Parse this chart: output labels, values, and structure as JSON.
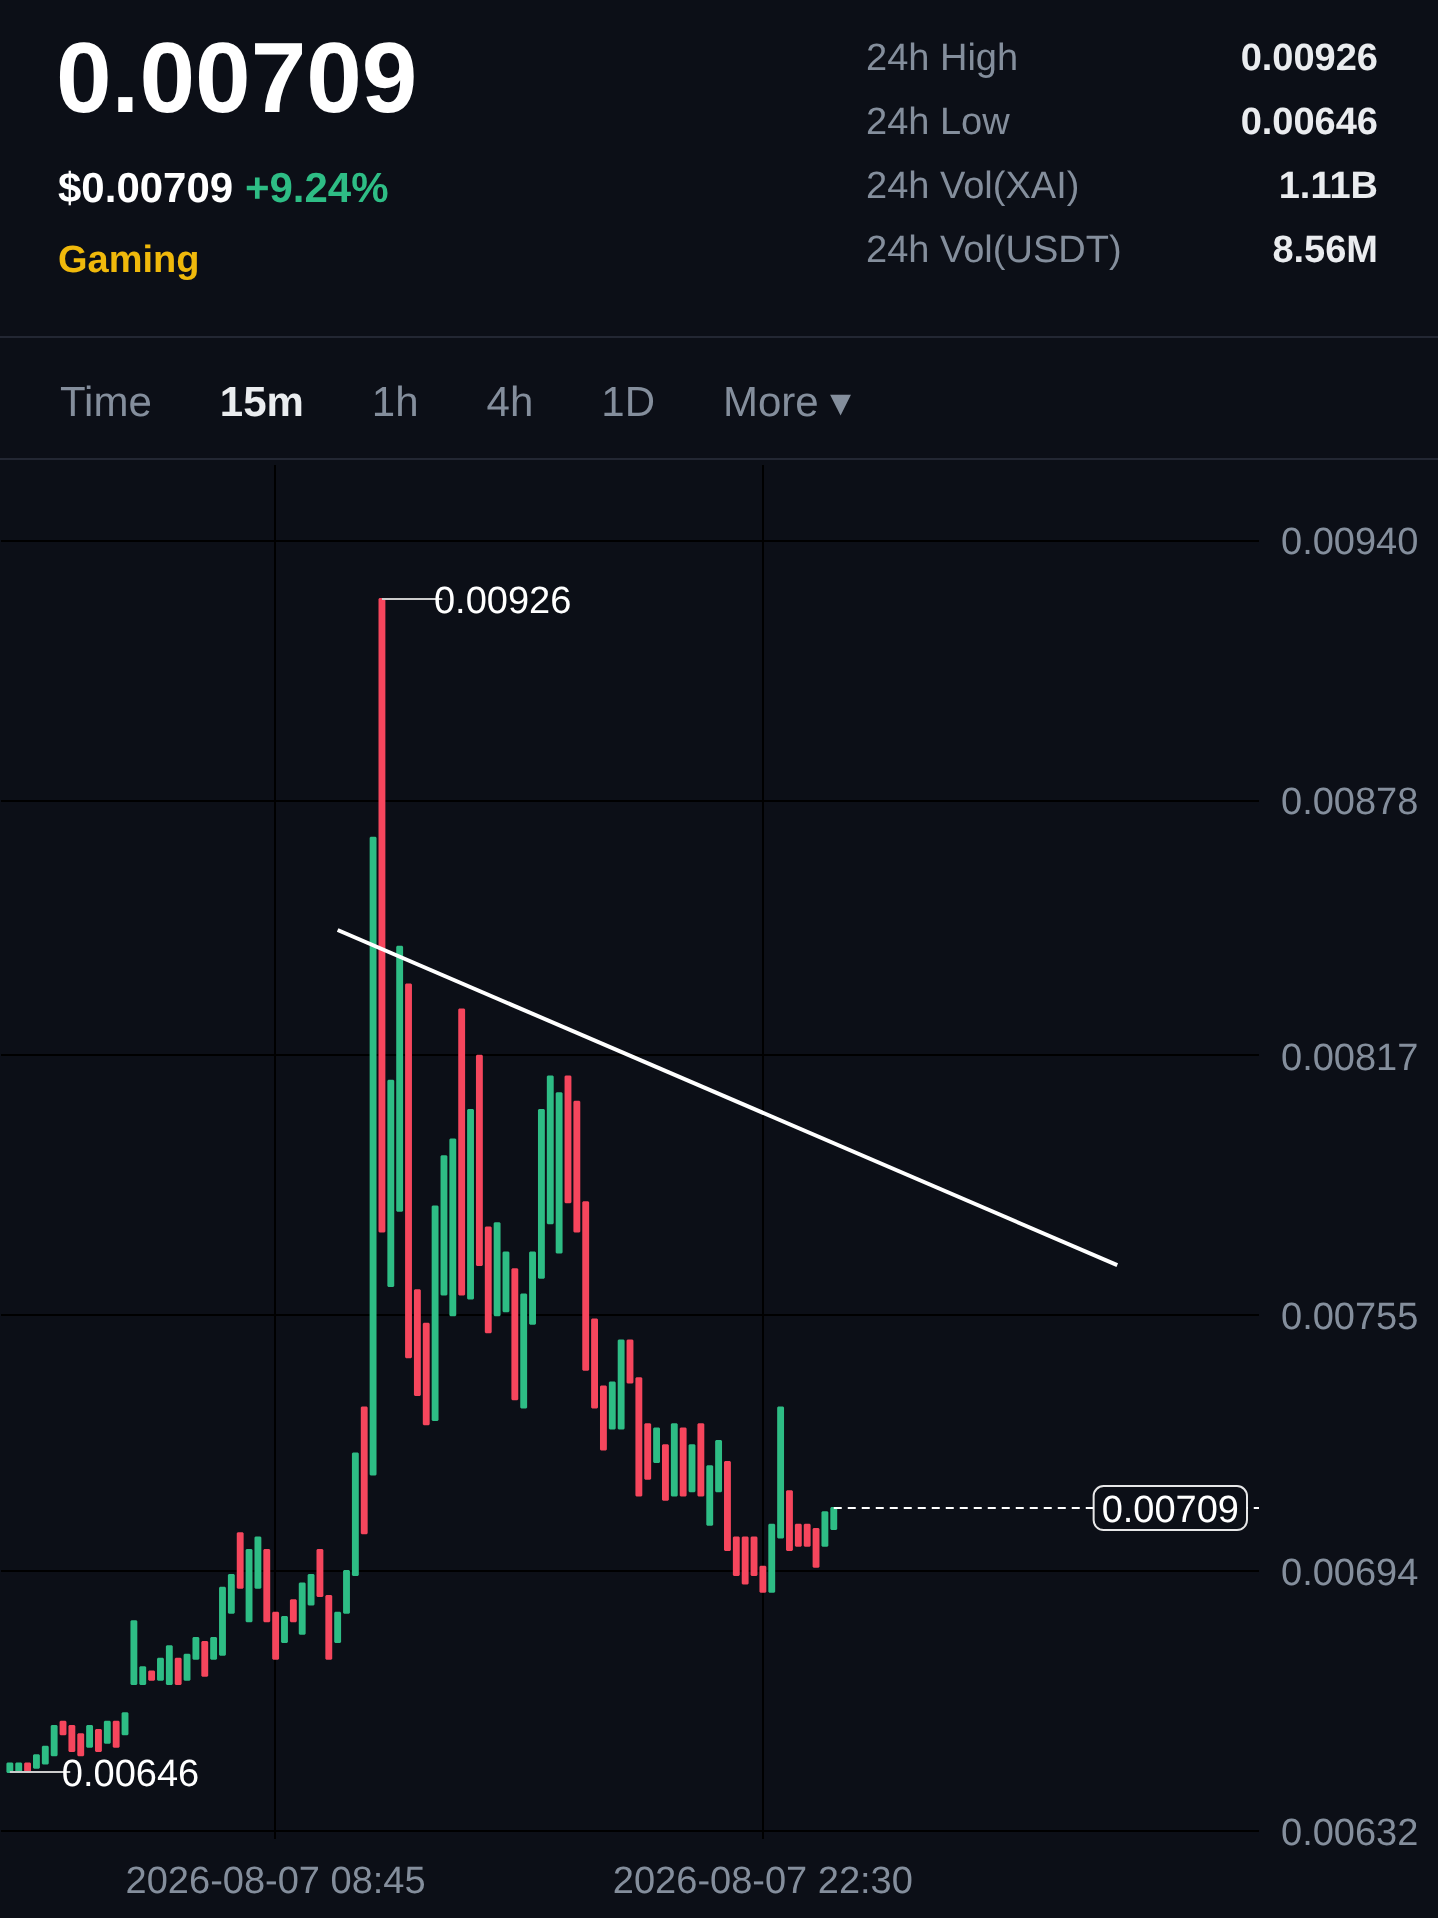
{
  "chart_data": {
    "type": "candlestick",
    "title": "0.00709",
    "subtitle": "$0.00709 +9.24%",
    "annotations": [
      "Gaming",
      "24h High",
      "0.00926",
      "24h Low",
      "0.00646",
      "24h Vol(XAI)",
      "1.11B",
      "24h Vol(USDT)",
      "8.56M",
      "Time",
      "15m",
      "1h",
      "4h",
      "1D",
      "More ▾",
      {
        "text": "0.00926",
        "x": "2026-08-07T11:45",
        "y": 0.00926
      },
      {
        "text": "0.00646",
        "x": "2026-08-07T01:15",
        "y": 0.00646
      }
    ],
    "x": [
      "2026-08-07T01:15",
      "2026-08-07T01:30",
      "2026-08-07T01:45",
      "2026-08-07T02:00",
      "2026-08-07T02:15",
      "2026-08-07T02:30",
      "2026-08-07T02:45",
      "2026-08-07T03:00",
      "2026-08-07T03:15",
      "2026-08-07T03:30",
      "2026-08-07T03:45",
      "2026-08-07T04:00",
      "2026-08-07T04:15",
      "2026-08-07T04:30",
      "2026-08-07T04:45",
      "2026-08-07T05:00",
      "2026-08-07T05:15",
      "2026-08-07T05:30",
      "2026-08-07T05:45",
      "2026-08-07T06:00",
      "2026-08-07T06:15",
      "2026-08-07T06:30",
      "2026-08-07T06:45",
      "2026-08-07T07:00",
      "2026-08-07T07:15",
      "2026-08-07T07:30",
      "2026-08-07T07:45",
      "2026-08-07T08:00",
      "2026-08-07T08:15",
      "2026-08-07T08:30",
      "2026-08-07T08:45",
      "2026-08-07T09:00",
      "2026-08-07T09:15",
      "2026-08-07T09:30",
      "2026-08-07T09:45",
      "2026-08-07T10:00",
      "2026-08-07T10:15",
      "2026-08-07T10:30",
      "2026-08-07T10:45",
      "2026-08-07T11:00",
      "2026-08-07T11:15",
      "2026-08-07T11:30",
      "2026-08-07T11:45",
      "2026-08-07T12:00",
      "2026-08-07T12:15",
      "2026-08-07T12:30",
      "2026-08-07T12:45",
      "2026-08-07T13:00",
      "2026-08-07T13:15",
      "2026-08-07T13:30",
      "2026-08-07T13:45",
      "2026-08-07T14:00",
      "2026-08-07T14:15",
      "2026-08-07T14:30",
      "2026-08-07T14:45",
      "2026-08-07T15:00",
      "2026-08-07T15:15",
      "2026-08-07T15:30",
      "2026-08-07T15:45",
      "2026-08-07T16:00",
      "2026-08-07T16:15",
      "2026-08-07T16:30",
      "2026-08-07T16:45",
      "2026-08-07T17:00",
      "2026-08-07T17:15",
      "2026-08-07T17:30",
      "2026-08-07T17:45",
      "2026-08-07T18:00",
      "2026-08-07T18:15",
      "2026-08-07T18:30",
      "2026-08-07T18:45",
      "2026-08-07T19:00",
      "2026-08-07T19:15",
      "2026-08-07T19:30",
      "2026-08-07T19:45",
      "2026-08-07T20:00",
      "2026-08-07T20:15",
      "2026-08-07T20:30",
      "2026-08-07T20:45",
      "2026-08-07T21:00",
      "2026-08-07T21:15",
      "2026-08-07T21:30",
      "2026-08-07T21:45",
      "2026-08-07T22:00",
      "2026-08-07T22:15",
      "2026-08-07T22:30",
      "2026-08-07T22:45",
      "2026-08-07T23:00",
      "2026-08-07T23:15",
      "2026-08-07T23:30",
      "2026-08-07T23:45",
      "2026-08-08T00:00",
      "2026-08-08T00:15",
      "2026-08-08T00:30"
    ],
    "ohlc": [
      [
        0.00646,
        0.00648,
        0.00646,
        0.00648
      ],
      [
        0.00646,
        0.00648,
        0.00646,
        0.00648
      ],
      [
        0.00648,
        0.00648,
        0.00646,
        0.00646
      ],
      [
        0.00647,
        0.0065,
        0.00647,
        0.0065
      ],
      [
        0.00648,
        0.00652,
        0.00648,
        0.00652
      ],
      [
        0.0065,
        0.00657,
        0.0065,
        0.00657
      ],
      [
        0.00658,
        0.00658,
        0.00655,
        0.00655
      ],
      [
        0.00657,
        0.00657,
        0.00651,
        0.00651
      ],
      [
        0.00655,
        0.00655,
        0.0065,
        0.0065
      ],
      [
        0.00652,
        0.00657,
        0.00652,
        0.00657
      ],
      [
        0.00656,
        0.00656,
        0.00651,
        0.00651
      ],
      [
        0.00653,
        0.00658,
        0.00653,
        0.00658
      ],
      [
        0.00658,
        0.00658,
        0.00652,
        0.00652
      ],
      [
        0.00655,
        0.0066,
        0.00655,
        0.0066
      ],
      [
        0.00667,
        0.00682,
        0.00667,
        0.00682
      ],
      [
        0.00667,
        0.00671,
        0.00667,
        0.00671
      ],
      [
        0.0067,
        0.0067,
        0.00668,
        0.00668
      ],
      [
        0.00668,
        0.00673,
        0.00668,
        0.00673
      ],
      [
        0.00667,
        0.00676,
        0.00667,
        0.00676
      ],
      [
        0.00673,
        0.00673,
        0.00667,
        0.00667
      ],
      [
        0.00668,
        0.00674,
        0.00668,
        0.00674
      ],
      [
        0.00673,
        0.00678,
        0.00673,
        0.00678
      ],
      [
        0.00677,
        0.00677,
        0.00669,
        0.00669
      ],
      [
        0.00673,
        0.00678,
        0.00673,
        0.00678
      ],
      [
        0.00674,
        0.0069,
        0.00674,
        0.0069
      ],
      [
        0.00684,
        0.00693,
        0.00684,
        0.00693
      ],
      [
        0.00703,
        0.00703,
        0.0069,
        0.0069
      ],
      [
        0.00682,
        0.00699,
        0.00682,
        0.00699
      ],
      [
        0.0069,
        0.00702,
        0.0069,
        0.00702
      ],
      [
        0.00699,
        0.00699,
        0.00682,
        0.00682
      ],
      [
        0.00684,
        0.00684,
        0.00673,
        0.00673
      ],
      [
        0.00677,
        0.00683,
        0.00677,
        0.00683
      ],
      [
        0.00687,
        0.00687,
        0.00682,
        0.00682
      ],
      [
        0.00679,
        0.00691,
        0.00679,
        0.00691
      ],
      [
        0.00686,
        0.00693,
        0.00686,
        0.00693
      ],
      [
        0.00699,
        0.00699,
        0.00688,
        0.00688
      ],
      [
        0.00688,
        0.00688,
        0.00673,
        0.00673
      ],
      [
        0.00677,
        0.00684,
        0.00677,
        0.00684
      ],
      [
        0.00684,
        0.00694,
        0.00684,
        0.00694
      ],
      [
        0.00693,
        0.00722,
        0.00693,
        0.00722
      ],
      [
        0.00733,
        0.00733,
        0.00703,
        0.00703
      ],
      [
        0.00717,
        0.00869,
        0.00717,
        0.00869
      ],
      [
        0.00926,
        0.00926,
        0.00775,
        0.00775
      ],
      [
        0.00762,
        0.00811,
        0.00762,
        0.00811
      ],
      [
        0.0078,
        0.00843,
        0.0078,
        0.00843
      ],
      [
        0.00834,
        0.00834,
        0.00745,
        0.00745
      ],
      [
        0.00761,
        0.00761,
        0.00736,
        0.00736
      ],
      [
        0.00753,
        0.00753,
        0.00729,
        0.00729
      ],
      [
        0.0073,
        0.00781,
        0.0073,
        0.00781
      ],
      [
        0.0076,
        0.00793,
        0.0076,
        0.00793
      ],
      [
        0.00755,
        0.00797,
        0.00755,
        0.00797
      ],
      [
        0.00828,
        0.00828,
        0.0076,
        0.0076
      ],
      [
        0.00759,
        0.00804,
        0.00759,
        0.00804
      ],
      [
        0.00817,
        0.00817,
        0.00767,
        0.00767
      ],
      [
        0.00776,
        0.00776,
        0.00751,
        0.00751
      ],
      [
        0.00755,
        0.00777,
        0.00755,
        0.00777
      ],
      [
        0.00756,
        0.0077,
        0.00756,
        0.0077
      ],
      [
        0.00766,
        0.00766,
        0.00735,
        0.00735
      ],
      [
        0.00733,
        0.0076,
        0.00733,
        0.0076
      ],
      [
        0.00753,
        0.0077,
        0.00753,
        0.0077
      ],
      [
        0.00764,
        0.00804,
        0.00764,
        0.00804
      ],
      [
        0.00777,
        0.00812,
        0.00777,
        0.00812
      ],
      [
        0.0077,
        0.00808,
        0.0077,
        0.00808
      ],
      [
        0.00812,
        0.00812,
        0.00782,
        0.00782
      ],
      [
        0.00806,
        0.00806,
        0.00775,
        0.00775
      ],
      [
        0.00782,
        0.00782,
        0.00742,
        0.00742
      ],
      [
        0.00754,
        0.00754,
        0.00733,
        0.00733
      ],
      [
        0.00738,
        0.00738,
        0.00723,
        0.00723
      ],
      [
        0.00728,
        0.00739,
        0.00728,
        0.00739
      ],
      [
        0.00728,
        0.00749,
        0.00728,
        0.00749
      ],
      [
        0.00749,
        0.00749,
        0.00739,
        0.00739
      ],
      [
        0.0074,
        0.0074,
        0.00712,
        0.00712
      ],
      [
        0.00729,
        0.00729,
        0.00716,
        0.00716
      ],
      [
        0.0072,
        0.00728,
        0.0072,
        0.00728
      ],
      [
        0.00724,
        0.00724,
        0.00711,
        0.00711
      ],
      [
        0.00712,
        0.00729,
        0.00712,
        0.00729
      ],
      [
        0.00728,
        0.00728,
        0.00712,
        0.00712
      ],
      [
        0.00713,
        0.00724,
        0.00713,
        0.00724
      ],
      [
        0.00729,
        0.00729,
        0.00712,
        0.00712
      ],
      [
        0.00705,
        0.00719,
        0.00705,
        0.00719
      ],
      [
        0.00713,
        0.00725,
        0.00713,
        0.00725
      ],
      [
        0.0072,
        0.0072,
        0.00699,
        0.00699
      ],
      [
        0.00702,
        0.00702,
        0.00693,
        0.00693
      ],
      [
        0.00702,
        0.00702,
        0.00691,
        0.00691
      ],
      [
        0.00702,
        0.00702,
        0.00693,
        0.00693
      ],
      [
        0.00695,
        0.00695,
        0.00689,
        0.00689
      ],
      [
        0.00689,
        0.00705,
        0.00689,
        0.00705
      ],
      [
        0.00702,
        0.00733,
        0.00702,
        0.00733
      ],
      [
        0.00713,
        0.00713,
        0.00699,
        0.00699
      ],
      [
        0.00705,
        0.00705,
        0.007,
        0.007
      ],
      [
        0.00705,
        0.00705,
        0.007,
        0.007
      ],
      [
        0.00704,
        0.00704,
        0.00695,
        0.00695
      ],
      [
        0.007,
        0.00708,
        0.007,
        0.00708
      ],
      [
        0.00704,
        0.00709,
        0.00704,
        0.00709
      ]
    ],
    "colors": [
      "#2ebd85",
      "#2ebd85",
      "#f6465d",
      "#2ebd85",
      "#2ebd85",
      "#2ebd85",
      "#f6465d",
      "#f6465d",
      "#f6465d",
      "#2ebd85",
      "#f6465d",
      "#2ebd85",
      "#f6465d",
      "#2ebd85",
      "#2ebd85",
      "#2ebd85",
      "#f6465d",
      "#2ebd85",
      "#2ebd85",
      "#f6465d",
      "#2ebd85",
      "#2ebd85",
      "#f6465d",
      "#2ebd85",
      "#2ebd85",
      "#2ebd85",
      "#f6465d",
      "#2ebd85",
      "#2ebd85",
      "#f6465d",
      "#f6465d",
      "#2ebd85",
      "#f6465d",
      "#2ebd85",
      "#2ebd85",
      "#f6465d",
      "#f6465d",
      "#2ebd85",
      "#2ebd85",
      "#2ebd85",
      "#f6465d",
      "#2ebd85",
      "#f6465d",
      "#2ebd85",
      "#2ebd85",
      "#f6465d",
      "#f6465d",
      "#f6465d",
      "#2ebd85",
      "#2ebd85",
      "#2ebd85",
      "#f6465d",
      "#2ebd85",
      "#f6465d",
      "#f6465d",
      "#2ebd85",
      "#2ebd85",
      "#f6465d",
      "#2ebd85",
      "#2ebd85",
      "#2ebd85",
      "#2ebd85",
      "#2ebd85",
      "#f6465d",
      "#f6465d",
      "#f6465d",
      "#f6465d",
      "#f6465d",
      "#2ebd85",
      "#2ebd85",
      "#f6465d",
      "#f6465d",
      "#f6465d",
      "#2ebd85",
      "#f6465d",
      "#2ebd85",
      "#f6465d",
      "#2ebd85",
      "#f6465d",
      "#2ebd85",
      "#2ebd85",
      "#f6465d",
      "#f6465d",
      "#f6465d",
      "#f6465d",
      "#f6465d",
      "#2ebd85",
      "#2ebd85",
      "#f6465d",
      "#f6465d",
      "#f6465d",
      "#f6465d",
      "#2ebd85",
      "#2ebd85"
    ],
    "series": [
      {
        "type": "line",
        "color": "#ffffff",
        "x": [
          "2026-08-07T10:30",
          "2026-08-08T08:30"
        ],
        "values": [
          0.00847,
          0.00767
        ]
      }
    ],
    "ref_lines": [
      {
        "axis": "y",
        "value": 0.00709,
        "label": "0.00709",
        "color": "#ffffff",
        "line_style": "dashed"
      }
    ],
    "xlim": [
      "2026-08-07T01:00",
      "2026-08-08T12:30"
    ],
    "xticks": [
      {
        "value": "2026-08-07T08:45",
        "label": "2026-08-07 08:45"
      },
      {
        "value": "2026-08-07T22:30",
        "label": "2026-08-07 22:30"
      }
    ],
    "ylim": [
      0.0063,
      0.00958
    ],
    "yticks": [
      {
        "value": 0.0094,
        "label": "0.00940"
      },
      {
        "value": 0.00878,
        "label": "0.00878"
      },
      {
        "value": 0.00817,
        "label": "0.00817"
      },
      {
        "value": 0.00755,
        "label": "0.00755"
      },
      {
        "value": 0.00694,
        "label": "0.00694"
      },
      {
        "value": 0.00632,
        "label": "0.00632"
      }
    ],
    "grid": true
  }
}
